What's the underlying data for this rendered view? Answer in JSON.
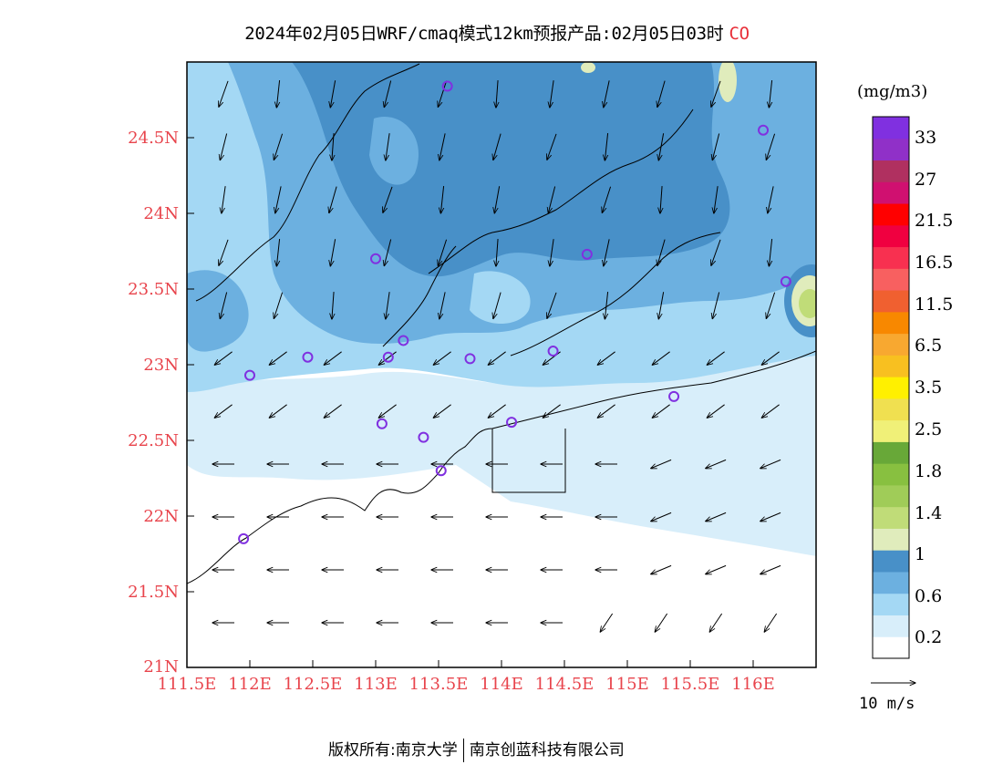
{
  "title": {
    "text": "2024年02月05日WRF/cmaq模式12km预报产品:02月05日03时",
    "species": "CO"
  },
  "axes": {
    "lat_labels": [
      "21N",
      "21.5N",
      "22N",
      "22.5N",
      "23N",
      "23.5N",
      "24N",
      "24.5N"
    ],
    "lon_labels": [
      "111.5E",
      "112E",
      "112.5E",
      "113E",
      "113.5E",
      "114E",
      "114.5E",
      "115E",
      "115.5E",
      "116E"
    ]
  },
  "colorbar": {
    "unit": "(mg/m3)",
    "labels": [
      "0.2",
      "0.6",
      "1",
      "1.4",
      "1.8",
      "2.5",
      "3.5",
      "6.5",
      "11.5",
      "16.5",
      "21.5",
      "27",
      "33"
    ],
    "colors": [
      "#ffffff",
      "#d8eefa",
      "#a4d8f4",
      "#6cb0e0",
      "#4890c8",
      "#e0ecbc",
      "#c0dc78",
      "#a0cc58",
      "#88c040",
      "#68a838",
      "#f0f078",
      "#f0e050",
      "#fff000",
      "#f8c020",
      "#f8a830",
      "#f88800",
      "#f06030",
      "#f86060",
      "#f83050",
      "#f00040",
      "#ff0000",
      "#d01070",
      "#b03060",
      "#9030c8",
      "#8030e0"
    ]
  },
  "wind_reference": {
    "label": "10 m/s"
  },
  "map_features": {
    "stations": [
      {
        "lon": 113.57,
        "lat": 24.84
      },
      {
        "lon": 116.08,
        "lat": 24.55
      },
      {
        "lon": 113.0,
        "lat": 23.7
      },
      {
        "lon": 114.68,
        "lat": 23.73
      },
      {
        "lon": 116.26,
        "lat": 23.55
      },
      {
        "lon": 113.22,
        "lat": 23.16
      },
      {
        "lon": 112.46,
        "lat": 23.05
      },
      {
        "lon": 113.1,
        "lat": 23.05
      },
      {
        "lon": 113.75,
        "lat": 23.04
      },
      {
        "lon": 114.41,
        "lat": 23.09
      },
      {
        "lon": 112.0,
        "lat": 22.93
      },
      {
        "lon": 115.37,
        "lat": 22.79
      },
      {
        "lon": 113.05,
        "lat": 22.61
      },
      {
        "lon": 113.38,
        "lat": 22.52
      },
      {
        "lon": 114.08,
        "lat": 22.62
      },
      {
        "lon": 113.52,
        "lat": 22.3
      },
      {
        "lon": 111.95,
        "lat": 21.85
      }
    ]
  },
  "footer": {
    "left": "版权所有:南京大学",
    "right": "南京创蓝科技有限公司"
  }
}
